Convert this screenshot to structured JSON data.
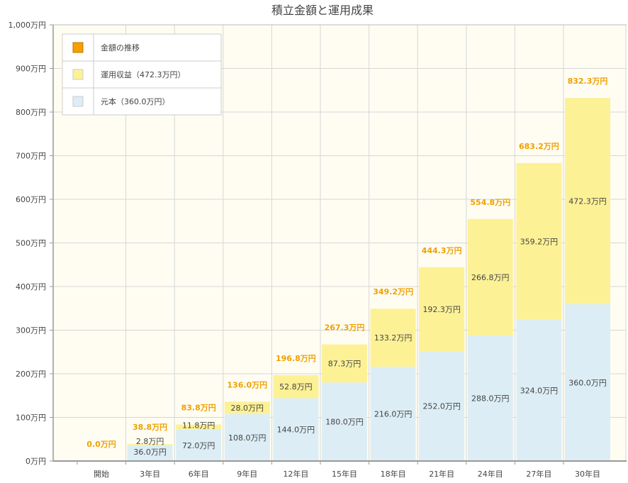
{
  "colors": {
    "principal": "#dcedf5",
    "gain": "#fdf196",
    "total_text": "#f0a000",
    "legend_total_swatch": "#f5a000",
    "plot_bg": "#fffdf2"
  },
  "chart_data": {
    "type": "bar",
    "stacked": true,
    "title": "積立金額と運用成果",
    "ylim": [
      0,
      1000
    ],
    "y_ticks": [
      0,
      100,
      200,
      300,
      400,
      500,
      600,
      700,
      800,
      900,
      1000
    ],
    "y_tick_labels": [
      "0万円",
      "100万円",
      "200万円",
      "300万円",
      "400万円",
      "500万円",
      "600万円",
      "700万円",
      "800万円",
      "900万円",
      "1,000万円"
    ],
    "categories": [
      "開始",
      "3年目",
      "6年目",
      "9年目",
      "12年目",
      "15年目",
      "18年目",
      "21年目",
      "24年目",
      "27年目",
      "30年目"
    ],
    "grid": true,
    "legend_position": "top-left",
    "legend": [
      "金額の推移",
      "運用収益（472.3万円）",
      "元本（360.0万円）"
    ],
    "series": [
      {
        "name": "元本（360.0万円）",
        "values": [
          0,
          36.0,
          72.0,
          108.0,
          144.0,
          180.0,
          216.0,
          252.0,
          288.0,
          324.0,
          360.0
        ],
        "labels": [
          "",
          "36.0万円",
          "72.0万円",
          "108.0万円",
          "144.0万円",
          "180.0万円",
          "216.0万円",
          "252.0万円",
          "288.0万円",
          "324.0万円",
          "360.0万円"
        ]
      },
      {
        "name": "運用収益（472.3万円）",
        "values": [
          0,
          2.8,
          11.8,
          28.0,
          52.8,
          87.3,
          133.2,
          192.3,
          266.8,
          359.2,
          472.3
        ],
        "labels": [
          "",
          "2.8万円",
          "11.8万円",
          "28.0万円",
          "52.8万円",
          "87.3万円",
          "133.2万円",
          "192.3万円",
          "266.8万円",
          "359.2万円",
          "472.3万円"
        ]
      }
    ],
    "totals": [
      0.0,
      38.8,
      83.8,
      136.0,
      196.8,
      267.3,
      349.2,
      444.3,
      554.8,
      683.2,
      832.3
    ],
    "total_labels": [
      "0.0万円",
      "38.8万円",
      "83.8万円",
      "136.0万円",
      "196.8万円",
      "267.3万円",
      "349.2万円",
      "444.3万円",
      "554.8万円",
      "683.2万円",
      "832.3万円"
    ]
  }
}
